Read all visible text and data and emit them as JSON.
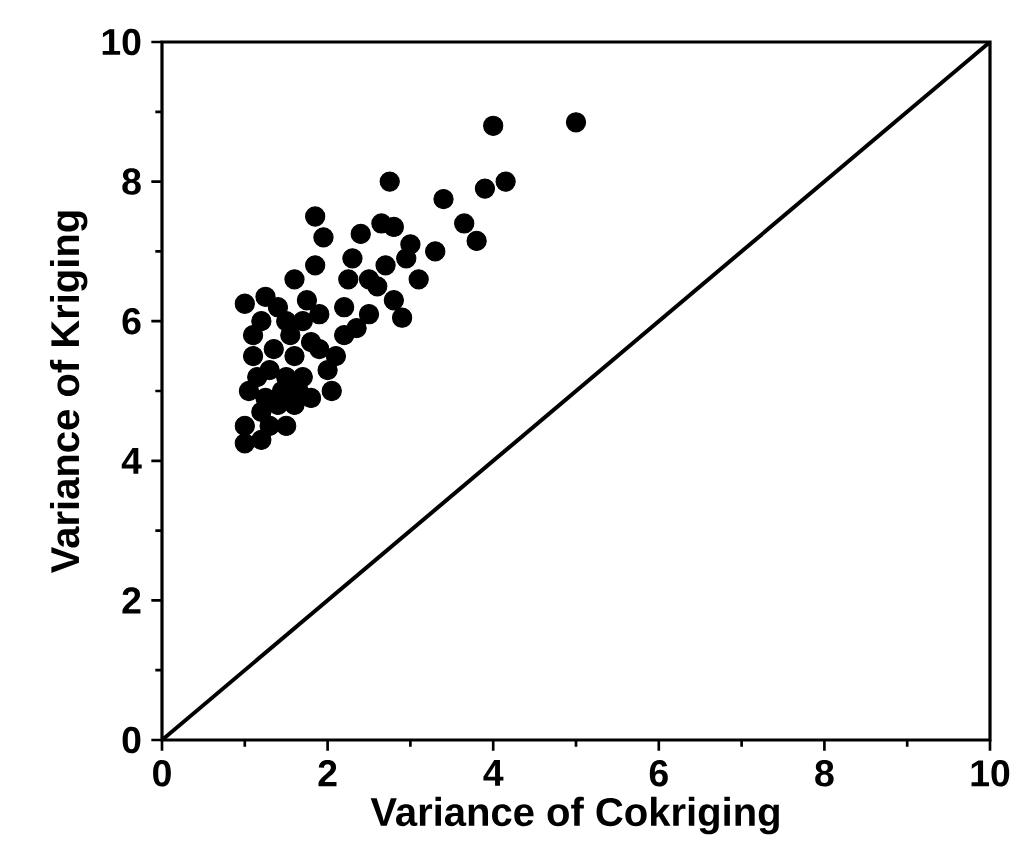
{
  "chart_data": {
    "type": "scatter",
    "xlabel": "Variance of Cokriging",
    "ylabel": "Variance of Kriging",
    "xlim": [
      0,
      10
    ],
    "ylim": [
      0,
      10
    ],
    "xticks": [
      0,
      2,
      4,
      6,
      8,
      10
    ],
    "yticks": [
      0,
      2,
      4,
      6,
      8,
      10
    ],
    "grid": false,
    "series": [
      {
        "marker": "circle",
        "color": "#000000",
        "x": [
          4.0,
          5.0,
          2.75,
          3.4,
          3.9,
          4.15,
          3.65,
          3.8,
          1.85,
          1.95,
          2.65,
          2.8,
          3.0,
          3.3,
          2.3,
          2.4,
          2.25,
          1.85,
          1.6,
          1.0,
          1.25,
          2.6,
          2.8,
          2.9,
          3.1,
          2.5,
          2.35,
          2.1,
          2.0,
          1.8,
          1.5,
          1.2,
          1.0,
          1.0,
          1.05,
          1.1,
          1.1,
          1.2,
          1.4,
          1.5,
          1.7,
          1.8,
          1.3,
          1.5,
          1.4,
          1.6,
          1.2,
          1.7,
          1.9,
          2.2,
          1.3,
          1.6,
          2.05,
          1.15,
          1.35,
          1.45,
          1.25,
          1.55,
          1.75,
          1.9,
          2.5,
          2.7,
          2.95,
          2.2,
          1.65
        ],
        "values": [
          8.8,
          8.85,
          8.0,
          7.75,
          7.9,
          8.0,
          7.4,
          7.15,
          7.5,
          7.2,
          7.4,
          7.35,
          7.1,
          7.0,
          6.9,
          7.25,
          6.6,
          6.8,
          6.6,
          6.25,
          6.35,
          6.5,
          6.3,
          6.05,
          6.6,
          6.1,
          5.9,
          5.5,
          5.3,
          4.9,
          4.5,
          4.3,
          4.25,
          4.5,
          5.0,
          5.5,
          5.8,
          6.0,
          6.2,
          6.0,
          6.0,
          5.7,
          5.3,
          5.2,
          4.8,
          5.5,
          4.7,
          5.2,
          5.6,
          5.8,
          4.5,
          4.8,
          5.0,
          5.2,
          5.6,
          5.0,
          4.9,
          5.8,
          6.3,
          6.1,
          6.6,
          6.8,
          6.9,
          6.2,
          5.0
        ]
      },
      {
        "type": "line",
        "marker": "none",
        "line_style": "solid",
        "color": "#000000",
        "x": [
          0,
          10
        ],
        "values": [
          0,
          10
        ]
      }
    ]
  }
}
